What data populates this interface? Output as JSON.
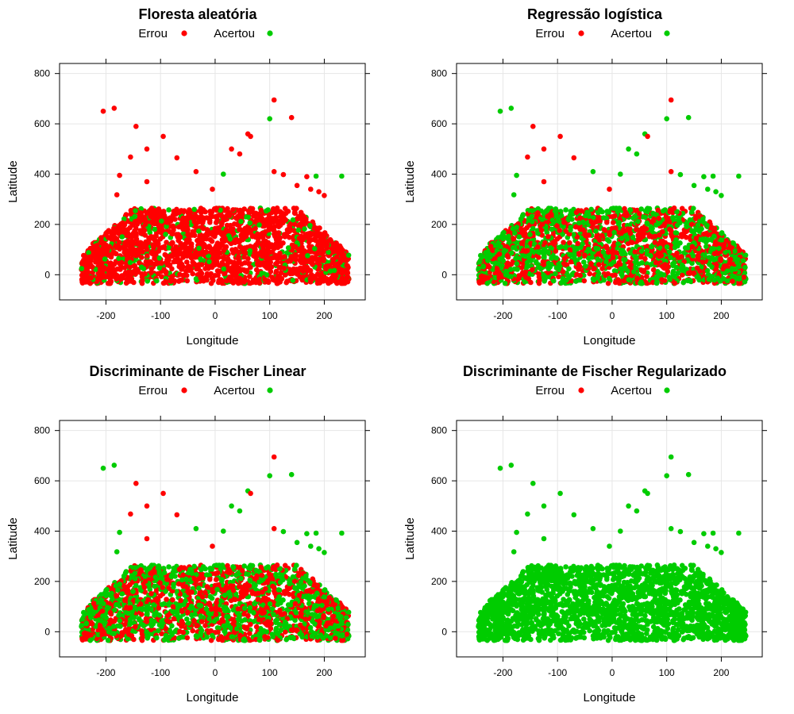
{
  "colors": {
    "errou": "#ff0000",
    "acertou": "#00cc00",
    "grid": "#e6e6e6",
    "frame": "#000000"
  },
  "chart_data": [
    {
      "type": "scatter",
      "title": "Floresta aleatória",
      "legend": [
        "Errou",
        "Acertou"
      ],
      "legend_position": "top",
      "xlabel": "Longitude",
      "ylabel": "Latitude",
      "xlim": [
        -285,
        275
      ],
      "ylim": [
        -100,
        840
      ],
      "xticks": [
        -200,
        -100,
        0,
        100,
        200
      ],
      "yticks": [
        0,
        200,
        400,
        600,
        800
      ],
      "grid": true,
      "accuracy": 0.12
    },
    {
      "type": "scatter",
      "title": "Regressão logística",
      "legend": [
        "Errou",
        "Acertou"
      ],
      "legend_position": "top",
      "xlabel": "Longitude",
      "ylabel": "Latitude",
      "xlim": [
        -285,
        275
      ],
      "ylim": [
        -100,
        840
      ],
      "xticks": [
        -200,
        -100,
        0,
        100,
        200
      ],
      "yticks": [
        0,
        200,
        400,
        600,
        800
      ],
      "grid": true,
      "accuracy": 0.5
    },
    {
      "type": "scatter",
      "title": "Discriminante de Fischer Linear",
      "legend": [
        "Errou",
        "Acertou"
      ],
      "legend_position": "top",
      "xlabel": "Longitude",
      "ylabel": "Latitude",
      "xlim": [
        -285,
        275
      ],
      "ylim": [
        -100,
        840
      ],
      "xticks": [
        -200,
        -100,
        0,
        100,
        200
      ],
      "yticks": [
        0,
        200,
        400,
        600,
        800
      ],
      "grid": true,
      "accuracy": 0.5
    },
    {
      "type": "scatter",
      "title": "Discriminante de Fischer Regularizado",
      "legend": [
        "Errou",
        "Acertou"
      ],
      "legend_position": "top",
      "xlabel": "Longitude",
      "ylabel": "Latitude",
      "xlim": [
        -285,
        275
      ],
      "ylim": [
        -100,
        840
      ],
      "xticks": [
        -200,
        -100,
        0,
        100,
        200
      ],
      "yticks": [
        0,
        200,
        400,
        600,
        800
      ],
      "grid": true,
      "accuracy": 1.0
    }
  ],
  "outliers": [
    [
      -205,
      650
    ],
    [
      -185,
      662
    ],
    [
      -175,
      395
    ],
    [
      -180,
      318
    ],
    [
      -155,
      468
    ],
    [
      -145,
      590
    ],
    [
      -125,
      500
    ],
    [
      -95,
      550
    ],
    [
      -125,
      370
    ],
    [
      -70,
      465
    ],
    [
      -35,
      410
    ],
    [
      -5,
      340
    ],
    [
      30,
      500
    ],
    [
      15,
      400
    ],
    [
      45,
      480
    ],
    [
      60,
      560
    ],
    [
      65,
      550
    ],
    [
      100,
      620
    ],
    [
      108,
      695
    ],
    [
      108,
      410
    ],
    [
      140,
      625
    ],
    [
      125,
      398
    ],
    [
      150,
      355
    ],
    [
      168,
      390
    ],
    [
      185,
      392
    ],
    [
      190,
      330
    ],
    [
      200,
      315
    ],
    [
      232,
      392
    ],
    [
      175,
      340
    ],
    [
      -230,
      70
    ]
  ]
}
